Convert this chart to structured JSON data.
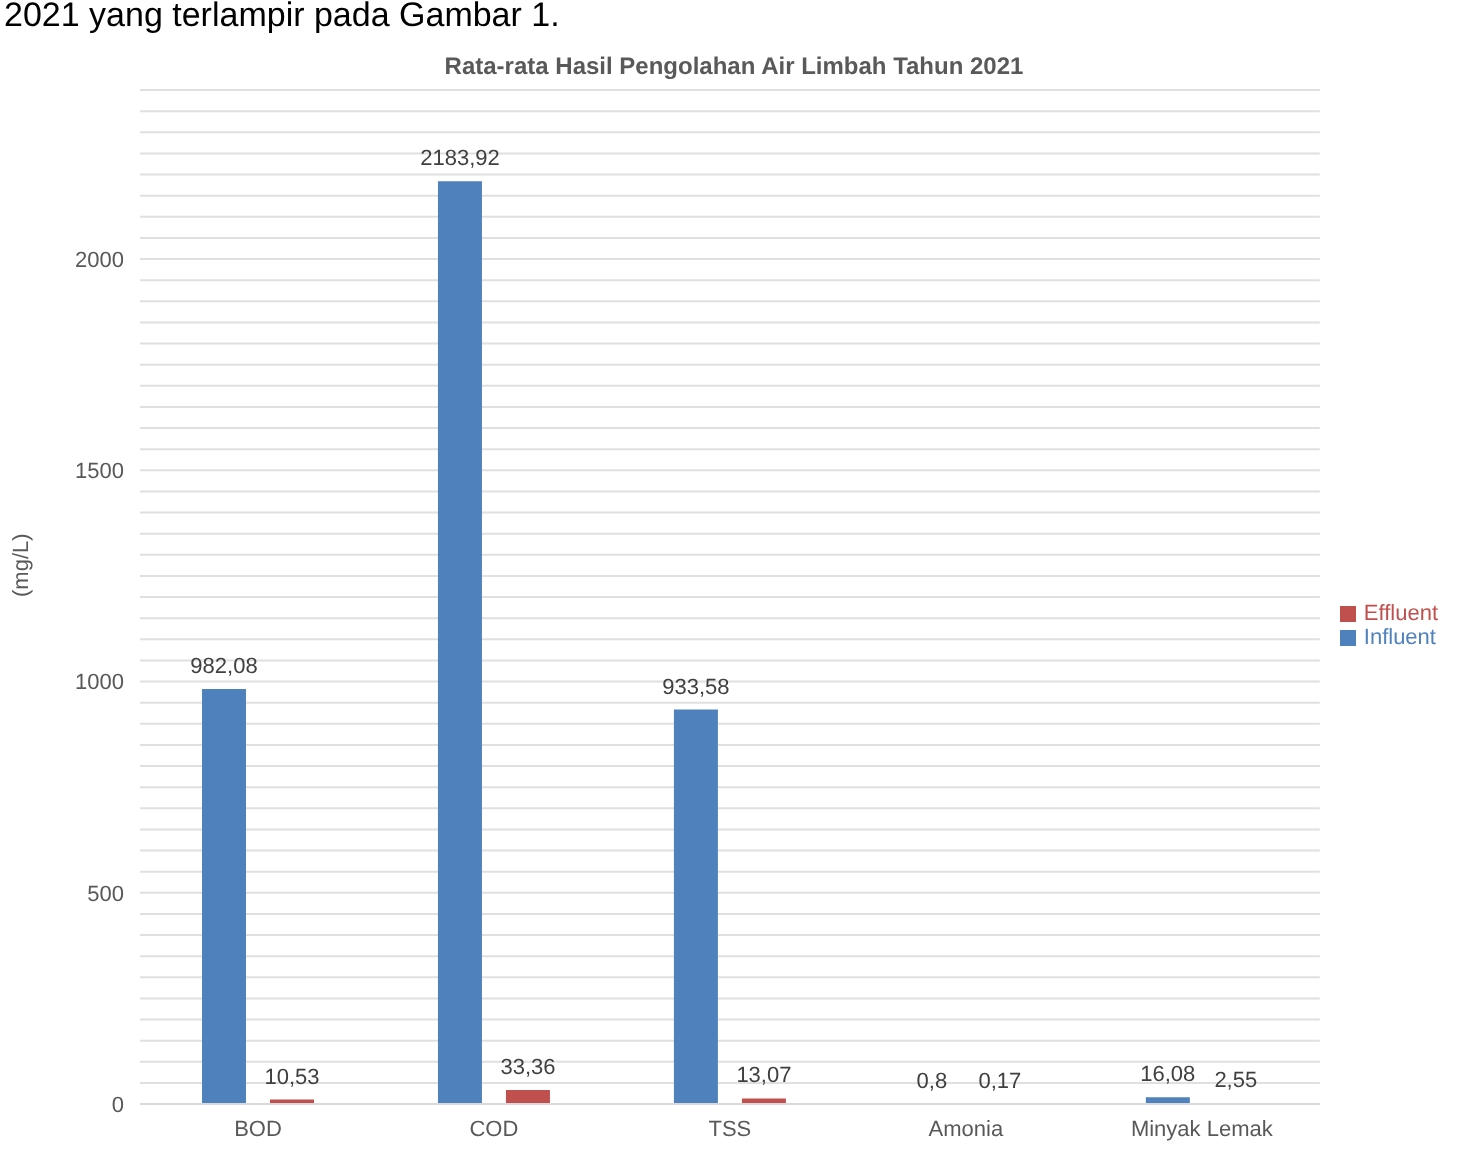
{
  "chart_data": {
    "type": "bar",
    "title": "Rata-rata Hasil Pengolahan Air Limbah Tahun 2021",
    "ylabel": "(mg/L)",
    "annotations": [
      "2021 yang terlampir pada Gambar 1."
    ],
    "categories": [
      "BOD",
      "COD",
      "TSS",
      "Amonia",
      "Minyak Lemak"
    ],
    "series": [
      {
        "name": "Influent",
        "color": "#4f81bd",
        "values": [
          982.08,
          2183.92,
          933.58,
          0.8,
          16.08
        ],
        "value_labels": [
          "982,08",
          "2183,92",
          "933,58",
          "0,8",
          "16,08"
        ]
      },
      {
        "name": "Effluent",
        "color": "#c0504d",
        "values": [
          10.53,
          33.36,
          13.07,
          0.17,
          2.55
        ],
        "value_labels": [
          "10,53",
          "33,36",
          "13,07",
          "0,17",
          "2,55"
        ]
      }
    ],
    "ylim": [
      0,
      2400
    ],
    "yticks": [
      0,
      {
        "value": 50,
        "label": null
      },
      {
        "value": 100,
        "label": null
      },
      {
        "value": 150,
        "label": null
      },
      {
        "value": 200,
        "label": null
      },
      {
        "value": 250,
        "label": null
      },
      {
        "value": 300,
        "label": null
      },
      {
        "value": 350,
        "label": null
      },
      {
        "value": 400,
        "label": null
      },
      {
        "value": 450,
        "label": null
      },
      500,
      {
        "value": 550,
        "label": null
      },
      {
        "value": 600,
        "label": null
      },
      {
        "value": 650,
        "label": null
      },
      {
        "value": 700,
        "label": null
      },
      {
        "value": 750,
        "label": null
      },
      {
        "value": 800,
        "label": null
      },
      {
        "value": 850,
        "label": null
      },
      {
        "value": 900,
        "label": null
      },
      {
        "value": 950,
        "label": null
      },
      1000,
      {
        "value": 1050,
        "label": null
      },
      {
        "value": 1100,
        "label": null
      },
      {
        "value": 1150,
        "label": null
      },
      {
        "value": 1200,
        "label": null
      },
      {
        "value": 1250,
        "label": null
      },
      {
        "value": 1300,
        "label": null
      },
      {
        "value": 1350,
        "label": null
      },
      {
        "value": 1400,
        "label": null
      },
      {
        "value": 1450,
        "label": null
      },
      1500,
      {
        "value": 1550,
        "label": null
      },
      {
        "value": 1600,
        "label": null
      },
      {
        "value": 1650,
        "label": null
      },
      {
        "value": 1700,
        "label": null
      },
      {
        "value": 1750,
        "label": null
      },
      {
        "value": 1800,
        "label": null
      },
      {
        "value": 1850,
        "label": null
      },
      {
        "value": 1900,
        "label": null
      },
      {
        "value": 1950,
        "label": null
      },
      2000,
      {
        "value": 2050,
        "label": null
      },
      {
        "value": 2100,
        "label": null
      },
      {
        "value": 2150,
        "label": null
      },
      {
        "value": 2200,
        "label": null
      },
      {
        "value": 2250,
        "label": null
      },
      {
        "value": 2300,
        "label": null
      },
      {
        "value": 2350,
        "label": null
      },
      {
        "value": 2400,
        "label": null
      }
    ],
    "grid": "y",
    "legend": "right"
  }
}
